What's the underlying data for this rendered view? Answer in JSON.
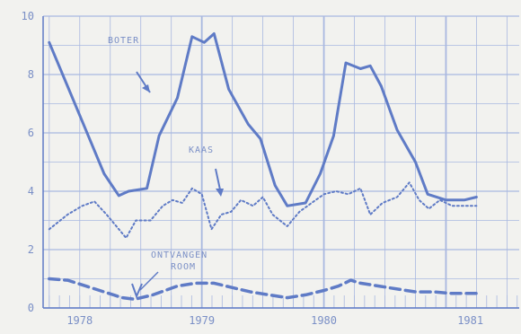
{
  "chart_data": {
    "type": "line",
    "title": "",
    "xlabel": "",
    "ylabel": "",
    "ylim": [
      0,
      10
    ],
    "xlim": [
      1977.7,
      1981.6
    ],
    "y_ticks": [
      0,
      2,
      4,
      6,
      8,
      10
    ],
    "year_labels": [
      {
        "label": "1978",
        "x": 1978.0
      },
      {
        "label": "1979",
        "x": 1979.0
      },
      {
        "label": "1980",
        "x": 1980.0
      },
      {
        "label": "1981",
        "x": 1981.2
      }
    ],
    "grid": true,
    "colors": {
      "line": "#5f7bc6",
      "grid": "#a9b8e0",
      "text": "#7a8fc6"
    },
    "series": [
      {
        "name": "BOTER",
        "style": "solid",
        "points": [
          [
            1977.75,
            9.1
          ],
          [
            1977.9,
            7.6
          ],
          [
            1978.05,
            6.1
          ],
          [
            1978.2,
            4.6
          ],
          [
            1978.32,
            3.85
          ],
          [
            1978.4,
            4.0
          ],
          [
            1978.55,
            4.1
          ],
          [
            1978.65,
            5.9
          ],
          [
            1978.8,
            7.2
          ],
          [
            1978.92,
            9.3
          ],
          [
            1979.02,
            9.1
          ],
          [
            1979.1,
            9.4
          ],
          [
            1979.22,
            7.5
          ],
          [
            1979.38,
            6.3
          ],
          [
            1979.48,
            5.8
          ],
          [
            1979.6,
            4.2
          ],
          [
            1979.7,
            3.5
          ],
          [
            1979.85,
            3.6
          ],
          [
            1979.97,
            4.6
          ],
          [
            1980.08,
            5.9
          ],
          [
            1980.18,
            8.4
          ],
          [
            1980.3,
            8.2
          ],
          [
            1980.38,
            8.3
          ],
          [
            1980.47,
            7.6
          ],
          [
            1980.6,
            6.1
          ],
          [
            1980.75,
            5.0
          ],
          [
            1980.85,
            3.9
          ],
          [
            1981.0,
            3.7
          ],
          [
            1981.15,
            3.7
          ],
          [
            1981.25,
            3.8
          ]
        ]
      },
      {
        "name": "KAAS",
        "style": "dotted",
        "points": [
          [
            1977.75,
            2.7
          ],
          [
            1977.9,
            3.2
          ],
          [
            1978.02,
            3.5
          ],
          [
            1978.12,
            3.65
          ],
          [
            1978.22,
            3.2
          ],
          [
            1978.32,
            2.7
          ],
          [
            1978.38,
            2.4
          ],
          [
            1978.46,
            3.0
          ],
          [
            1978.58,
            3.0
          ],
          [
            1978.68,
            3.5
          ],
          [
            1978.76,
            3.7
          ],
          [
            1978.84,
            3.6
          ],
          [
            1978.92,
            4.1
          ],
          [
            1979.0,
            3.9
          ],
          [
            1979.08,
            2.7
          ],
          [
            1979.16,
            3.2
          ],
          [
            1979.24,
            3.3
          ],
          [
            1979.32,
            3.7
          ],
          [
            1979.42,
            3.5
          ],
          [
            1979.5,
            3.8
          ],
          [
            1979.58,
            3.2
          ],
          [
            1979.7,
            2.8
          ],
          [
            1979.8,
            3.3
          ],
          [
            1979.9,
            3.6
          ],
          [
            1980.0,
            3.9
          ],
          [
            1980.1,
            4.0
          ],
          [
            1980.2,
            3.9
          ],
          [
            1980.3,
            4.1
          ],
          [
            1980.38,
            3.2
          ],
          [
            1980.48,
            3.6
          ],
          [
            1980.6,
            3.8
          ],
          [
            1980.7,
            4.3
          ],
          [
            1980.78,
            3.7
          ],
          [
            1980.86,
            3.4
          ],
          [
            1980.95,
            3.7
          ],
          [
            1981.05,
            3.5
          ],
          [
            1981.25,
            3.5
          ]
        ]
      },
      {
        "name": "ONTVANGEN ROOM",
        "style": "dashed",
        "points": [
          [
            1977.75,
            1.0
          ],
          [
            1977.9,
            0.95
          ],
          [
            1978.05,
            0.75
          ],
          [
            1978.2,
            0.55
          ],
          [
            1978.35,
            0.35
          ],
          [
            1978.45,
            0.3
          ],
          [
            1978.6,
            0.45
          ],
          [
            1978.8,
            0.75
          ],
          [
            1978.95,
            0.85
          ],
          [
            1979.1,
            0.85
          ],
          [
            1979.25,
            0.7
          ],
          [
            1979.4,
            0.55
          ],
          [
            1979.55,
            0.45
          ],
          [
            1979.7,
            0.35
          ],
          [
            1979.85,
            0.45
          ],
          [
            1980.0,
            0.6
          ],
          [
            1980.12,
            0.75
          ],
          [
            1980.22,
            0.95
          ],
          [
            1980.3,
            0.85
          ],
          [
            1980.45,
            0.75
          ],
          [
            1980.6,
            0.65
          ],
          [
            1980.75,
            0.55
          ],
          [
            1980.9,
            0.55
          ],
          [
            1981.05,
            0.5
          ],
          [
            1981.25,
            0.5
          ]
        ]
      }
    ],
    "annotations": [
      {
        "id": "boter",
        "lines": [
          "BOTER"
        ]
      },
      {
        "id": "kaas",
        "lines": [
          "KAAS"
        ]
      },
      {
        "id": "room",
        "lines": [
          "ONTVANGEN",
          "ROOM"
        ]
      }
    ]
  }
}
